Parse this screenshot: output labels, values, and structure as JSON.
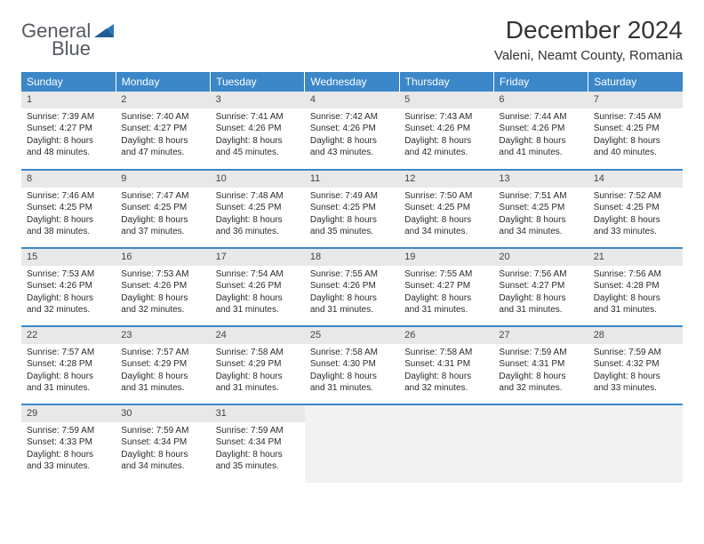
{
  "brand": {
    "line1": "General",
    "line2": "Blue"
  },
  "title": "December 2024",
  "location": "Valeni, Neamt County, Romania",
  "colors": {
    "header_bg": "#3b87c8",
    "header_text": "#ffffff",
    "daynum_bg": "#e8e8e8",
    "row_divider": "#3b87c8",
    "logo_gray": "#555a60",
    "logo_blue": "#2a77bd"
  },
  "weekdays": [
    "Sunday",
    "Monday",
    "Tuesday",
    "Wednesday",
    "Thursday",
    "Friday",
    "Saturday"
  ],
  "weeks": [
    [
      {
        "n": "1",
        "sr": "7:39 AM",
        "ss": "4:27 PM",
        "dl": "8 hours and 48 minutes."
      },
      {
        "n": "2",
        "sr": "7:40 AM",
        "ss": "4:27 PM",
        "dl": "8 hours and 47 minutes."
      },
      {
        "n": "3",
        "sr": "7:41 AM",
        "ss": "4:26 PM",
        "dl": "8 hours and 45 minutes."
      },
      {
        "n": "4",
        "sr": "7:42 AM",
        "ss": "4:26 PM",
        "dl": "8 hours and 43 minutes."
      },
      {
        "n": "5",
        "sr": "7:43 AM",
        "ss": "4:26 PM",
        "dl": "8 hours and 42 minutes."
      },
      {
        "n": "6",
        "sr": "7:44 AM",
        "ss": "4:26 PM",
        "dl": "8 hours and 41 minutes."
      },
      {
        "n": "7",
        "sr": "7:45 AM",
        "ss": "4:25 PM",
        "dl": "8 hours and 40 minutes."
      }
    ],
    [
      {
        "n": "8",
        "sr": "7:46 AM",
        "ss": "4:25 PM",
        "dl": "8 hours and 38 minutes."
      },
      {
        "n": "9",
        "sr": "7:47 AM",
        "ss": "4:25 PM",
        "dl": "8 hours and 37 minutes."
      },
      {
        "n": "10",
        "sr": "7:48 AM",
        "ss": "4:25 PM",
        "dl": "8 hours and 36 minutes."
      },
      {
        "n": "11",
        "sr": "7:49 AM",
        "ss": "4:25 PM",
        "dl": "8 hours and 35 minutes."
      },
      {
        "n": "12",
        "sr": "7:50 AM",
        "ss": "4:25 PM",
        "dl": "8 hours and 34 minutes."
      },
      {
        "n": "13",
        "sr": "7:51 AM",
        "ss": "4:25 PM",
        "dl": "8 hours and 34 minutes."
      },
      {
        "n": "14",
        "sr": "7:52 AM",
        "ss": "4:25 PM",
        "dl": "8 hours and 33 minutes."
      }
    ],
    [
      {
        "n": "15",
        "sr": "7:53 AM",
        "ss": "4:26 PM",
        "dl": "8 hours and 32 minutes."
      },
      {
        "n": "16",
        "sr": "7:53 AM",
        "ss": "4:26 PM",
        "dl": "8 hours and 32 minutes."
      },
      {
        "n": "17",
        "sr": "7:54 AM",
        "ss": "4:26 PM",
        "dl": "8 hours and 31 minutes."
      },
      {
        "n": "18",
        "sr": "7:55 AM",
        "ss": "4:26 PM",
        "dl": "8 hours and 31 minutes."
      },
      {
        "n": "19",
        "sr": "7:55 AM",
        "ss": "4:27 PM",
        "dl": "8 hours and 31 minutes."
      },
      {
        "n": "20",
        "sr": "7:56 AM",
        "ss": "4:27 PM",
        "dl": "8 hours and 31 minutes."
      },
      {
        "n": "21",
        "sr": "7:56 AM",
        "ss": "4:28 PM",
        "dl": "8 hours and 31 minutes."
      }
    ],
    [
      {
        "n": "22",
        "sr": "7:57 AM",
        "ss": "4:28 PM",
        "dl": "8 hours and 31 minutes."
      },
      {
        "n": "23",
        "sr": "7:57 AM",
        "ss": "4:29 PM",
        "dl": "8 hours and 31 minutes."
      },
      {
        "n": "24",
        "sr": "7:58 AM",
        "ss": "4:29 PM",
        "dl": "8 hours and 31 minutes."
      },
      {
        "n": "25",
        "sr": "7:58 AM",
        "ss": "4:30 PM",
        "dl": "8 hours and 31 minutes."
      },
      {
        "n": "26",
        "sr": "7:58 AM",
        "ss": "4:31 PM",
        "dl": "8 hours and 32 minutes."
      },
      {
        "n": "27",
        "sr": "7:59 AM",
        "ss": "4:31 PM",
        "dl": "8 hours and 32 minutes."
      },
      {
        "n": "28",
        "sr": "7:59 AM",
        "ss": "4:32 PM",
        "dl": "8 hours and 33 minutes."
      }
    ],
    [
      {
        "n": "29",
        "sr": "7:59 AM",
        "ss": "4:33 PM",
        "dl": "8 hours and 33 minutes."
      },
      {
        "n": "30",
        "sr": "7:59 AM",
        "ss": "4:34 PM",
        "dl": "8 hours and 34 minutes."
      },
      {
        "n": "31",
        "sr": "7:59 AM",
        "ss": "4:34 PM",
        "dl": "8 hours and 35 minutes."
      },
      null,
      null,
      null,
      null
    ]
  ],
  "labels": {
    "sunrise": "Sunrise:",
    "sunset": "Sunset:",
    "daylight": "Daylight:"
  }
}
